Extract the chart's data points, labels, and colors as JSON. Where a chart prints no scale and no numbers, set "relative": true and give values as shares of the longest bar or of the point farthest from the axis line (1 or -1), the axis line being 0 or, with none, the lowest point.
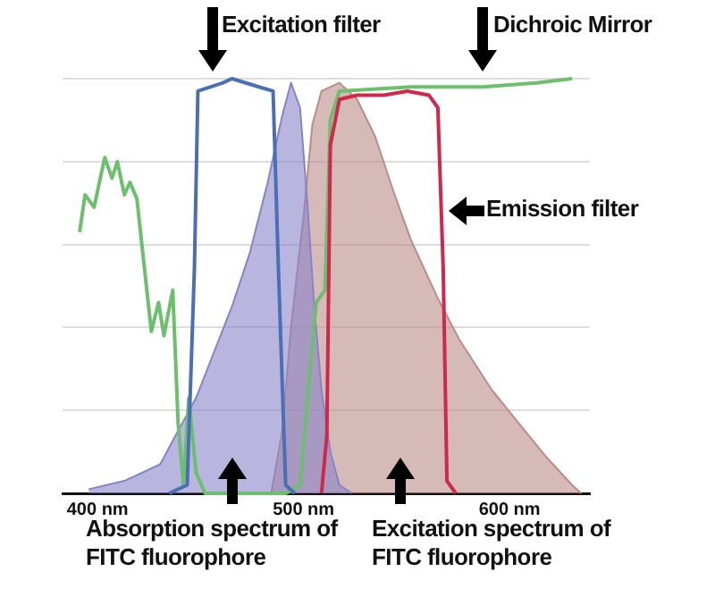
{
  "chart_data": {
    "type": "line",
    "relative": true,
    "grid": "y",
    "legend": false,
    "marker": "none",
    "xlim": [
      383,
      639
    ],
    "xticks": [
      {
        "value": 400,
        "label": "400 nm"
      },
      {
        "value": 500,
        "label": "500 nm"
      },
      {
        "value": 600,
        "label": "600 nm"
      }
    ],
    "series": [
      {
        "name": "Absorption spectrum of FITC fluorophore",
        "type": "area",
        "color": "#8883c8",
        "x": [
          395.7,
          413,
          430.4,
          439,
          447.8,
          456.5,
          465.2,
          473.9,
          482.6,
          489.6,
          493.9,
          498.3,
          501.7,
          505.2,
          508.7,
          513,
          517.4,
          523.5
        ],
        "values": [
          0.01,
          0.03,
          0.07,
          0.15,
          0.23,
          0.34,
          0.45,
          0.58,
          0.75,
          0.91,
          0.99,
          0.93,
          0.71,
          0.45,
          0.25,
          0.1,
          0.02,
          0
        ]
      },
      {
        "name": "Excitation spectrum of FITC fluorophore",
        "type": "area",
        "color": "#bb8c88",
        "x": [
          484.3,
          489.6,
          493.9,
          500,
          504.3,
          508.7,
          517.4,
          526,
          534.8,
          543.5,
          552.2,
          565.2,
          575.7,
          591.3,
          604.3,
          617.4,
          630.4,
          634.8
        ],
        "values": [
          0,
          0.15,
          0.4,
          0.67,
          0.89,
          0.97,
          0.99,
          0.95,
          0.86,
          0.73,
          0.61,
          0.47,
          0.37,
          0.25,
          0.17,
          0.09,
          0.02,
          0
        ]
      },
      {
        "name": "Excitation filter",
        "type": "line",
        "color": "#4a6fb5",
        "x": [
          434.8,
          443.5,
          447,
          448.7,
          460.9,
          465.2,
          478.3,
          485.2,
          487.8,
          491.3,
          495.7
        ],
        "values": [
          0,
          0.02,
          0.54,
          0.97,
          0.99,
          1,
          0.98,
          0.97,
          0.54,
          0.02,
          0
        ]
      },
      {
        "name": "Emission filter",
        "type": "line",
        "color": "#d0284a",
        "x": [
          508.7,
          511.3,
          513,
          517.4,
          526,
          539.1,
          550.4,
          560.9,
          565.2,
          567.8,
          569.6,
          573.9
        ],
        "values": [
          0,
          0.14,
          0.84,
          0.95,
          0.96,
          0.96,
          0.97,
          0.96,
          0.93,
          0.54,
          0.03,
          0
        ]
      },
      {
        "name": "Dichroic Mirror",
        "type": "line",
        "color": "#6cbf6c",
        "x": [
          391.3,
          393.9,
          398.3,
          403.5,
          407,
          409.6,
          413,
          415.7,
          419.1,
          426.1,
          429.6,
          432.2,
          436.5,
          439.1,
          441.7,
          444.3,
          447.8,
          452.2,
          491.3,
          498.3,
          506.1,
          510.4,
          513,
          517.4,
          552.2,
          587,
          613,
          630.4
        ],
        "values": [
          0.63,
          0.72,
          0.69,
          0.81,
          0.76,
          0.8,
          0.72,
          0.75,
          0.71,
          0.39,
          0.46,
          0.38,
          0.49,
          0.17,
          0.02,
          0.23,
          0.05,
          0,
          0,
          0.02,
          0.46,
          0.49,
          0.9,
          0.97,
          0.98,
          0.98,
          0.99,
          1
        ]
      }
    ]
  }
}
